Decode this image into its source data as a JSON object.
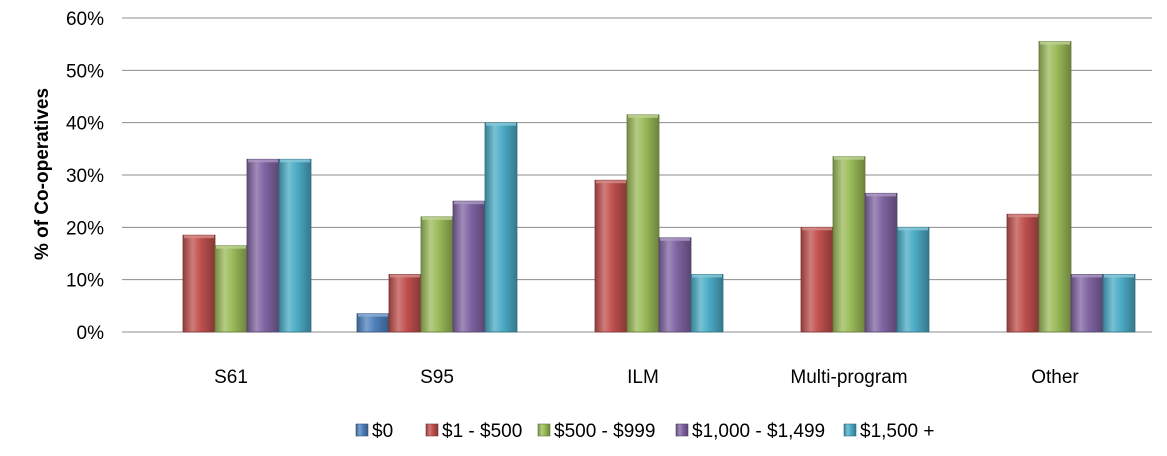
{
  "chart_data": {
    "type": "bar",
    "ylabel": "% of Co-operatives",
    "xlabel": "",
    "ylim": [
      0,
      60
    ],
    "y_ticks": [
      "0%",
      "10%",
      "20%",
      "30%",
      "40%",
      "50%",
      "60%"
    ],
    "y_tick_values": [
      0,
      10,
      20,
      30,
      40,
      50,
      60
    ],
    "categories": [
      "S61",
      "S95",
      "ILM",
      "Multi-program",
      "Other"
    ],
    "grid": true,
    "legend_position": "bottom",
    "series": [
      {
        "name": "$0",
        "color": "#4F81BD",
        "values": [
          0,
          3.5,
          0,
          0,
          0
        ]
      },
      {
        "name": "$1 - $500",
        "color": "#C0504D",
        "values": [
          18.5,
          11,
          29,
          20,
          22.5
        ]
      },
      {
        "name": "$500 - $999",
        "color": "#9BBB59",
        "values": [
          16.5,
          22,
          41.5,
          33.5,
          55.5
        ]
      },
      {
        "name": "$1,000 - $1,499",
        "color": "#8064A2",
        "values": [
          33,
          25,
          18,
          26.5,
          11
        ]
      },
      {
        "name": "$1,500 +",
        "color": "#4BACC6",
        "values": [
          33,
          40,
          11,
          20,
          11
        ]
      }
    ]
  }
}
